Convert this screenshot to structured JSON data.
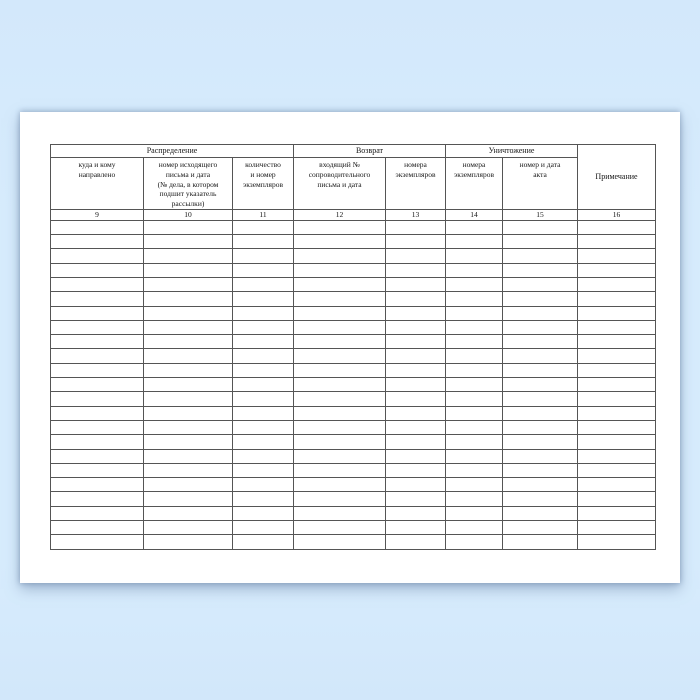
{
  "page": {
    "background_color": "#d6ebfc",
    "paper_color": "#ffffff",
    "line_color": "#555555"
  },
  "table": {
    "groups": [
      {
        "label": "Распределение",
        "columns": 3
      },
      {
        "label": "Возврат",
        "columns": 2
      },
      {
        "label": "Уничтожение",
        "columns": 2
      }
    ],
    "columns": [
      {
        "number": "9",
        "label": [
          "куда и кому",
          "направлено"
        ]
      },
      {
        "number": "10",
        "label": [
          "номер исходящего",
          "письма и дата",
          "(№ дела, в котором",
          "подшит указатель",
          "рассылки)"
        ]
      },
      {
        "number": "11",
        "label": [
          "количество",
          "и номер",
          "экземпляров"
        ]
      },
      {
        "number": "12",
        "label": [
          "входящий №",
          "сопроводительного",
          "письма и дата"
        ]
      },
      {
        "number": "13",
        "label": [
          "номера",
          "экземпляров"
        ]
      },
      {
        "number": "14",
        "label": [
          "номера",
          "экземпляров"
        ]
      },
      {
        "number": "15",
        "label": [
          "номер и дата",
          "акта"
        ]
      }
    ],
    "note_column": {
      "number": "16",
      "label": "Примечание"
    },
    "blank_row_count": 23,
    "columns_total": 8
  }
}
